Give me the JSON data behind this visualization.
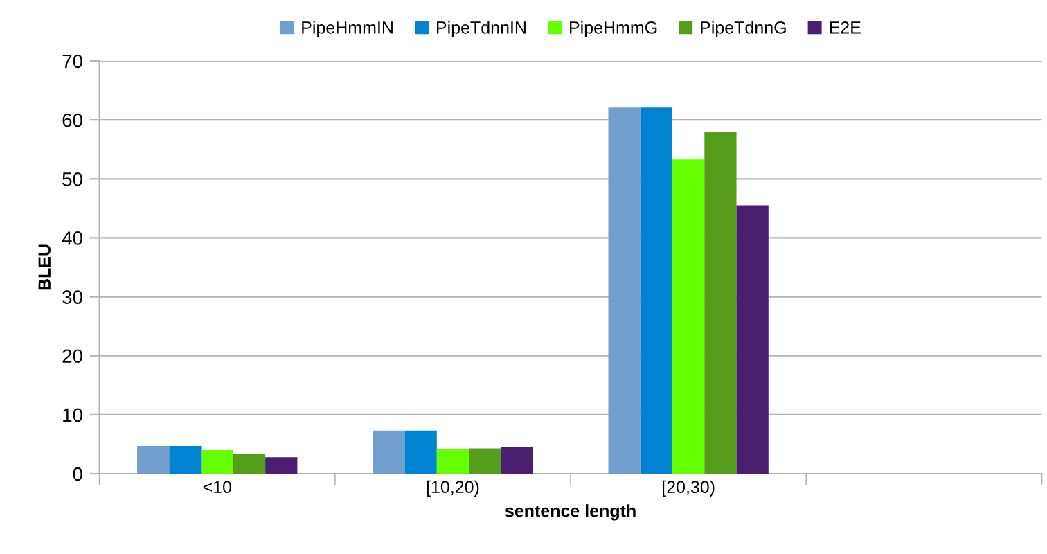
{
  "chart_data": {
    "type": "bar",
    "xlabel": "sentence length",
    "ylabel": "BLEU",
    "categories": [
      "<10",
      "[10,20)",
      "[20,30)",
      null
    ],
    "series": [
      {
        "name": "PipeHmmIN",
        "color": "#729fcf",
        "values": [
          4.7,
          7.3,
          62.1,
          null
        ]
      },
      {
        "name": "PipeTdnnIN",
        "color": "#0084d1",
        "values": [
          4.7,
          7.3,
          62.1,
          null
        ]
      },
      {
        "name": "PipeHmmG",
        "color": "#66ff00",
        "values": [
          4.0,
          4.2,
          53.3,
          null
        ]
      },
      {
        "name": "PipeTdnnG",
        "color": "#579d1c",
        "values": [
          3.3,
          4.3,
          58.0,
          null
        ]
      },
      {
        "name": "E2E",
        "color": "#4b1f6f",
        "values": [
          2.8,
          4.5,
          45.5,
          null
        ]
      }
    ],
    "ylim": [
      0,
      70
    ],
    "yticks": [
      0,
      10,
      20,
      30,
      40,
      50,
      60,
      70
    ],
    "grid": "y",
    "legend": "top"
  }
}
